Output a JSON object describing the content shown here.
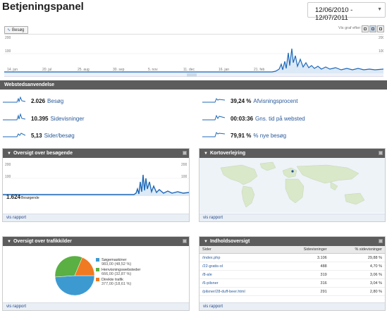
{
  "header": {
    "title": "Betjeningspanel",
    "date_range": "12/06/2010 - 12/07/2011"
  },
  "main_chart": {
    "tab_label": "Besøg",
    "view_label": "Vis graf efter:",
    "y_max": "200",
    "y_mid": "100",
    "x_labels": [
      "14. jun",
      "20. jul",
      "25. aug",
      "30. sep",
      "5. nov",
      "11. dec",
      "16. jan",
      "21. feb"
    ]
  },
  "site_usage": {
    "title": "Webstedsanvendelse",
    "left": [
      {
        "value": "2.026",
        "label": "Besøg"
      },
      {
        "value": "10.395",
        "label": "Sidevisninger"
      },
      {
        "value": "5,13",
        "label": "Sider/besøg"
      }
    ],
    "right": [
      {
        "value": "39,24 %",
        "label": "Afvisningsprocent"
      },
      {
        "value": "00:03:36",
        "label": "Gns. tid på websted"
      },
      {
        "value": "79,91 %",
        "label": "% nye besøg"
      }
    ]
  },
  "visitors_overview": {
    "title": "Oversigt over besøgende",
    "y_max": "200",
    "y_mid": "100",
    "total": "1.624",
    "total_label": "Besøgende",
    "report_link": "vis rapport"
  },
  "map_overlay": {
    "title": "Kortoverlejring",
    "report_link": "vis rapport"
  },
  "traffic_sources": {
    "title": "Oversigt over trafikkilder",
    "report_link": "vis rapport",
    "legend": [
      {
        "label": "Søgemaskiner",
        "detail": "983,00 (48,52 %)",
        "color": "#3d9ad1"
      },
      {
        "label": "Henvisningswebsteder",
        "detail": "666,00 (32,87 %)",
        "color": "#5ab043"
      },
      {
        "label": "Direkte trafik",
        "detail": "377,00 (18,61 %)",
        "color": "#ef7a22"
      }
    ]
  },
  "content_overview": {
    "title": "Indholdsoversigt",
    "report_link": "vis rapport",
    "columns": [
      "Sider",
      "Sidevisninger",
      "% sidevisninger"
    ],
    "rows": [
      {
        "page": "/index.php",
        "views": "3.106",
        "pct": "29,88 %"
      },
      {
        "page": "/22-gratis-ol",
        "views": "488",
        "pct": "4,70 %"
      },
      {
        "page": "/8-ale",
        "views": "319",
        "pct": "3,06 %"
      },
      {
        "page": "/6-pilsner",
        "views": "316",
        "pct": "3,04 %"
      },
      {
        "page": "/pilsner/28-duff-beer.html",
        "views": "291",
        "pct": "2,80 %"
      }
    ]
  }
}
